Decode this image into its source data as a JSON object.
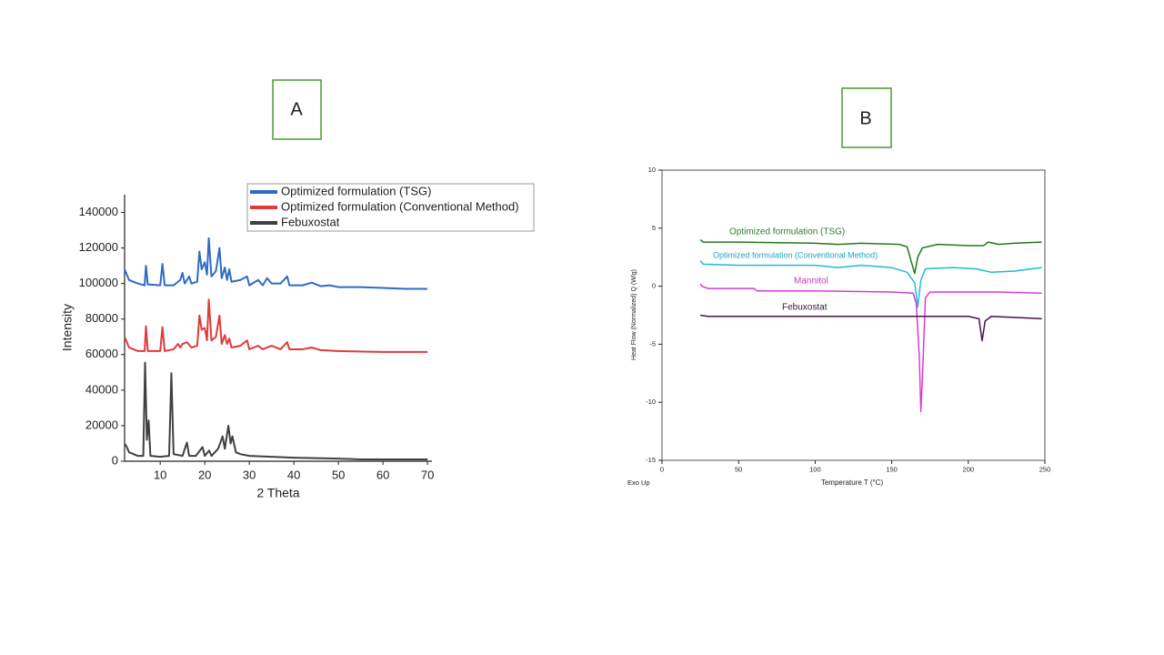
{
  "panels": [
    "A",
    "B"
  ],
  "chart_data": [
    {
      "type": "line",
      "frame": "left-bottom",
      "legend": "upper right",
      "x_label": "2 Theta",
      "y_label": "Intensity",
      "xlim": [
        2,
        71
      ],
      "xticks": [
        10,
        20,
        30,
        40,
        50,
        60,
        70
      ],
      "ylim": [
        0,
        150000
      ],
      "yticks": [
        0,
        20000,
        40000,
        60000,
        80000,
        100000,
        120000,
        140000
      ],
      "series": [
        {
          "name": "Optimized formulation (TSG)",
          "color": "#2f6bc5",
          "x": [
            2,
            3,
            5,
            6.5,
            6.8,
            7.2,
            10,
            10.5,
            11,
            13,
            14.5,
            15,
            15.5,
            16.5,
            17,
            18.3,
            18.8,
            19.3,
            20,
            20.5,
            20.9,
            21.5,
            22.5,
            23.3,
            23.8,
            24.5,
            25,
            25.5,
            26,
            28,
            29.5,
            30,
            32,
            33,
            34,
            35,
            37,
            38.5,
            39,
            42,
            44,
            46,
            48,
            50,
            55,
            60,
            65,
            70
          ],
          "values": [
            108000,
            102000,
            100000,
            99000,
            110000,
            99500,
            99000,
            111000,
            99000,
            99000,
            102000,
            106000,
            100000,
            104000,
            100000,
            101000,
            118000,
            108000,
            112000,
            105000,
            125500,
            104000,
            107000,
            120000,
            103000,
            109000,
            102000,
            108000,
            101000,
            102000,
            104000,
            99000,
            102000,
            99000,
            103000,
            100000,
            100000,
            104000,
            99000,
            99000,
            100500,
            98500,
            99000,
            98000,
            98000,
            97500,
            97000,
            97000
          ]
        },
        {
          "name": "Optimized formulation (Conventional Method)",
          "color": "#e03b3b",
          "x": [
            2,
            3,
            5,
            6.5,
            6.8,
            7.2,
            10,
            10.5,
            11,
            13,
            14,
            14.5,
            15,
            16,
            17,
            18.3,
            18.8,
            19.3,
            20,
            20.5,
            20.9,
            21.5,
            22.5,
            23.3,
            23.8,
            24.5,
            25,
            25.5,
            26,
            28,
            29.5,
            30,
            32,
            33,
            35,
            37,
            38.5,
            39,
            42,
            44,
            46,
            50,
            60,
            70
          ],
          "values": [
            70000,
            64000,
            62000,
            62000,
            76000,
            62000,
            62000,
            75500,
            62000,
            63000,
            66000,
            64000,
            66000,
            67000,
            64000,
            65000,
            82000,
            74000,
            75000,
            68000,
            91000,
            68000,
            70000,
            82000,
            66000,
            71000,
            66000,
            69000,
            64000,
            65000,
            68000,
            63000,
            65000,
            63000,
            65000,
            63000,
            67000,
            63000,
            63000,
            64000,
            62500,
            62000,
            61500,
            61500
          ]
        },
        {
          "name": "Febuxostat",
          "color": "#404040",
          "x": [
            2,
            2.5,
            3,
            5,
            6.2,
            6.6,
            7,
            7.4,
            7.8,
            10,
            12,
            12.5,
            13,
            15,
            16,
            16.5,
            18,
            19.5,
            20,
            21,
            21.5,
            23,
            24,
            24.5,
            25.3,
            25.8,
            26.2,
            27,
            28,
            30,
            35,
            40,
            50,
            55,
            70
          ],
          "values": [
            10000,
            8000,
            5000,
            3000,
            3000,
            55500,
            12000,
            23000,
            3000,
            2500,
            3000,
            49500,
            4000,
            3000,
            10500,
            3000,
            3000,
            8000,
            3000,
            6000,
            3000,
            7000,
            14000,
            7000,
            20000,
            10000,
            14000,
            5000,
            4000,
            3000,
            2500,
            2000,
            1500,
            1000,
            1000
          ]
        }
      ]
    },
    {
      "type": "line",
      "frame": "box",
      "legend": "inline",
      "x_label": "Temperature T (°C)",
      "y_label": "Heat Flow (Normalized) Q (W/g)",
      "note": "Exo Up",
      "xlim": [
        0,
        250
      ],
      "xticks": [
        0,
        50,
        100,
        150,
        200,
        250
      ],
      "ylim": [
        -15,
        10
      ],
      "yticks": [
        -15,
        -10,
        -5,
        0,
        5,
        10
      ],
      "series": [
        {
          "name": "Optimized formulation (TSG)",
          "color": "#1e7a1e",
          "label_color": "#2e7d2e",
          "x": [
            25,
            27,
            50,
            100,
            115,
            130,
            155,
            160,
            163,
            165,
            167,
            170,
            180,
            200,
            210,
            213,
            220,
            230,
            248
          ],
          "values": [
            4,
            3.8,
            3.8,
            3.7,
            3.6,
            3.7,
            3.6,
            3.4,
            2,
            1.1,
            2.5,
            3.3,
            3.6,
            3.5,
            3.5,
            3.8,
            3.6,
            3.7,
            3.8
          ]
        },
        {
          "name": "Optimized formulation (Conventional Method)",
          "color": "#1fbcd6",
          "label_color": "#1aa7c7",
          "x": [
            25,
            27,
            50,
            100,
            115,
            130,
            150,
            160,
            165,
            167,
            169,
            172,
            190,
            205,
            215,
            230,
            248
          ],
          "values": [
            2.2,
            1.9,
            1.8,
            1.8,
            1.6,
            1.8,
            1.6,
            1.2,
            0.3,
            -1.8,
            0.5,
            1.5,
            1.6,
            1.5,
            1.2,
            1.3,
            1.6
          ]
        },
        {
          "name": "Mannitol",
          "color": "#d63cd6",
          "label_color": "#c040c0",
          "x": [
            25,
            26,
            30,
            60,
            62,
            100,
            150,
            164,
            166,
            168,
            169,
            170,
            172,
            175,
            200,
            220,
            248
          ],
          "values": [
            0.2,
            0,
            -0.2,
            -0.2,
            -0.4,
            -0.4,
            -0.5,
            -0.6,
            -1.5,
            -6,
            -10.8,
            -8,
            -1,
            -0.5,
            -0.5,
            -0.5,
            -0.6
          ]
        },
        {
          "name": "Febuxostat",
          "color": "#4a1050",
          "label_color": "#3a1040",
          "x": [
            25,
            30,
            100,
            200,
            207,
            209,
            211,
            215,
            248
          ],
          "values": [
            -2.5,
            -2.6,
            -2.6,
            -2.6,
            -2.8,
            -4.7,
            -3,
            -2.6,
            -2.8
          ]
        }
      ]
    }
  ]
}
